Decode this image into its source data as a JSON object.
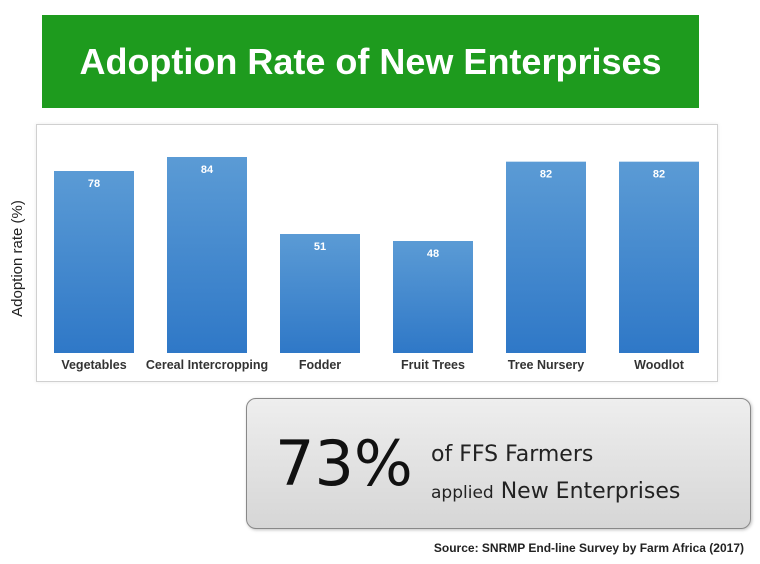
{
  "title": "Adoption Rate of New Enterprises",
  "chart_data": {
    "type": "bar",
    "categories": [
      "Vegetables",
      "Cereal Intercropping",
      "Fodder",
      "Fruit Trees",
      "Tree Nursery",
      "Woodlot"
    ],
    "values": [
      78,
      84,
      51,
      48,
      82,
      82
    ],
    "value_labels": [
      "78",
      "84",
      "51",
      "48",
      "82",
      "82"
    ],
    "ylabel": "Adoption rate (%)",
    "xlabel": "",
    "ylim": [
      0,
      90
    ],
    "grid": false,
    "bar_color_top": "#5b9bd5",
    "bar_color_bottom": "#2f78c7"
  },
  "callout": {
    "big_number": "73%",
    "line1": "of FFS Farmers",
    "line2_small": "applied",
    "line2_rest": "New Enterprises"
  },
  "source": "Source: SNRMP End-line Survey by Farm Africa (2017)"
}
